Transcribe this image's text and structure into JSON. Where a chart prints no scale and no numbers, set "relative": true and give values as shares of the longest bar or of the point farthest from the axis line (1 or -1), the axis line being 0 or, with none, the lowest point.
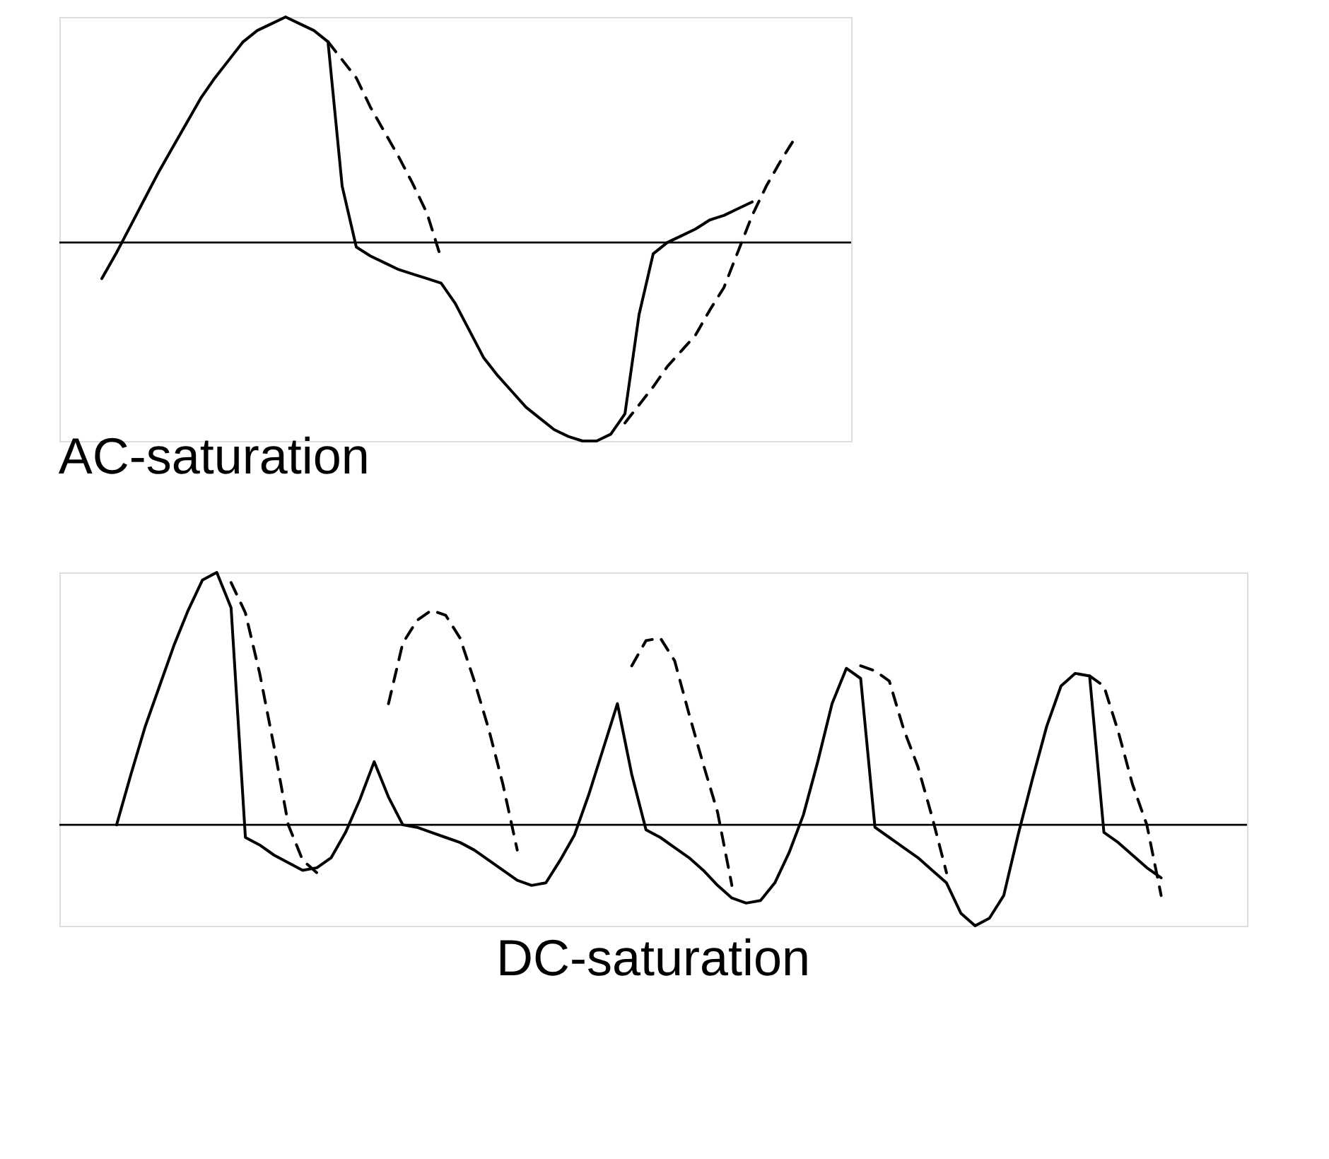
{
  "chart_data": [
    {
      "type": "line",
      "relative": true,
      "title": "AC-saturation",
      "categories": [
        null,
        null,
        null,
        null,
        null,
        null,
        null,
        null,
        null,
        null,
        null,
        null,
        null,
        null,
        null,
        null,
        null,
        null,
        null,
        null,
        null,
        null,
        null,
        null,
        null,
        null,
        null,
        null,
        null,
        null,
        null,
        null,
        null,
        null,
        null,
        null,
        null,
        null,
        null,
        null,
        null,
        null,
        null,
        null,
        null,
        null,
        null,
        null,
        null,
        null,
        null,
        null,
        null,
        null,
        null,
        null,
        null
      ],
      "series": [
        {
          "color": "#000000",
          "line_style": "solid",
          "values": [
            null,
            null,
            null,
            -0.16,
            -0.05,
            0.07,
            0.19,
            0.31,
            0.42,
            0.53,
            0.64,
            0.73,
            0.81,
            0.89,
            0.94,
            0.97,
            1,
            0.97,
            0.94,
            0.89,
            0.25,
            -0.02,
            -0.06,
            -0.09,
            -0.12,
            -0.14,
            -0.16,
            -0.18,
            -0.27,
            -0.39,
            -0.51,
            -0.59,
            -0.66,
            -0.73,
            -0.78,
            -0.83,
            -0.86,
            -0.88,
            -0.88,
            -0.85,
            -0.76,
            -0.32,
            -0.05,
            0,
            0.03,
            0.06,
            0.1,
            0.12,
            0.15,
            0.18,
            null,
            null,
            null,
            null,
            null,
            null,
            null
          ]
        },
        {
          "color": "#000000",
          "line_style": "dashed",
          "values": [
            null,
            null,
            null,
            null,
            null,
            null,
            null,
            null,
            null,
            null,
            null,
            null,
            null,
            null,
            null,
            null,
            null,
            null,
            null,
            0.89,
            0.81,
            0.73,
            0.6,
            0.49,
            0.38,
            0.26,
            0.13,
            -0.07,
            null,
            null,
            null,
            null,
            null,
            null,
            null,
            null,
            null,
            null,
            null,
            null,
            -0.8,
            -0.72,
            -0.64,
            -0.55,
            -0.48,
            -0.41,
            -0.3,
            -0.2,
            -0.04,
            0.12,
            0.25,
            0.36,
            0.46,
            null,
            null,
            null,
            null
          ]
        }
      ]
    },
    {
      "type": "line",
      "relative": true,
      "title": "DC-saturation",
      "categories": [
        null,
        null,
        null,
        null,
        null,
        null,
        null,
        null,
        null,
        null,
        null,
        null,
        null,
        null,
        null,
        null,
        null,
        null,
        null,
        null,
        null,
        null,
        null,
        null,
        null,
        null,
        null,
        null,
        null,
        null,
        null,
        null,
        null,
        null,
        null,
        null,
        null,
        null,
        null,
        null,
        null,
        null,
        null,
        null,
        null,
        null,
        null,
        null,
        null,
        null,
        null,
        null,
        null,
        null,
        null,
        null,
        null,
        null,
        null,
        null,
        null,
        null,
        null,
        null,
        null,
        null,
        null,
        null,
        null,
        null,
        null,
        null,
        null,
        null,
        null,
        null,
        null,
        null,
        null,
        null,
        null,
        null,
        null,
        null
      ],
      "series": [
        {
          "color": "#000000",
          "line_style": "solid",
          "values": [
            null,
            null,
            null,
            null,
            0,
            0.2,
            0.39,
            0.55,
            0.71,
            0.85,
            0.97,
            1,
            0.86,
            -0.05,
            -0.08,
            -0.12,
            -0.15,
            -0.18,
            -0.17,
            -0.13,
            -0.03,
            0.1,
            0.25,
            0.11,
            0,
            -0.01,
            -0.03,
            -0.05,
            -0.07,
            -0.1,
            -0.14,
            -0.18,
            -0.22,
            -0.24,
            -0.23,
            -0.14,
            -0.04,
            0.12,
            0.3,
            0.48,
            0.2,
            -0.02,
            -0.05,
            -0.09,
            -0.13,
            -0.18,
            -0.24,
            -0.29,
            -0.31,
            -0.3,
            -0.23,
            -0.11,
            0.04,
            0.25,
            0.48,
            0.62,
            0.58,
            -0.01,
            -0.05,
            -0.09,
            -0.13,
            -0.18,
            -0.23,
            -0.35,
            -0.4,
            -0.37,
            -0.28,
            -0.04,
            0.18,
            0.39,
            0.55,
            0.6,
            0.59,
            -0.03,
            -0.07,
            -0.12,
            -0.17,
            -0.21,
            null,
            null,
            null,
            null,
            null,
            null
          ]
        },
        {
          "color": "#000000",
          "line_style": "dashed",
          "values": [
            null,
            null,
            null,
            null,
            null,
            null,
            null,
            null,
            null,
            null,
            null,
            null,
            0.96,
            0.84,
            0.6,
            0.31,
            0,
            -0.14,
            -0.19,
            null,
            null,
            null,
            null,
            0.48,
            0.72,
            0.81,
            0.85,
            0.83,
            0.74,
            0.57,
            0.38,
            0.16,
            -0.1,
            null,
            null,
            null,
            null,
            null,
            null,
            null,
            0.63,
            0.73,
            0.74,
            0.65,
            0.44,
            0.24,
            0.05,
            -0.24,
            null,
            null,
            null,
            null,
            null,
            null,
            null,
            null,
            0.63,
            0.61,
            0.57,
            0.38,
            0.23,
            0.03,
            -0.19,
            null,
            null,
            null,
            null,
            null,
            null,
            null,
            null,
            null,
            0.59,
            0.55,
            0.37,
            0.16,
            0,
            -0.28,
            null,
            null,
            null,
            null,
            null,
            null
          ]
        }
      ]
    }
  ]
}
